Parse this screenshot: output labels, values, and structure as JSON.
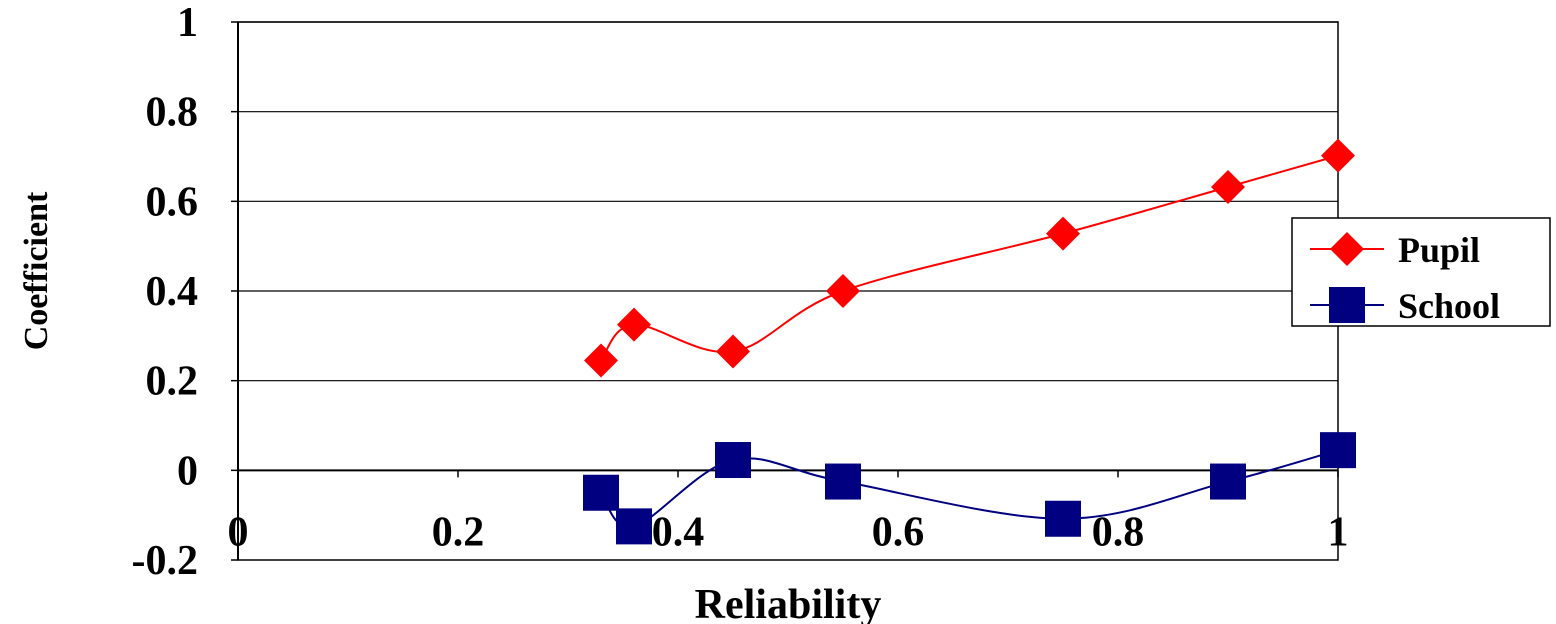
{
  "chart_data": {
    "type": "line",
    "title": "",
    "xlabel": "Reliability",
    "ylabel": "Coefficient",
    "xlim": [
      0,
      1
    ],
    "ylim": [
      -0.2,
      1
    ],
    "x_ticks": [
      0,
      0.2,
      0.4,
      0.6,
      0.8,
      1
    ],
    "x_tick_labels": [
      "0",
      "0.2",
      "0.4",
      "0.6",
      "0.8",
      "1"
    ],
    "y_ticks": [
      -0.2,
      0,
      0.2,
      0.4,
      0.6,
      0.8,
      1
    ],
    "y_tick_labels": [
      "-0.2",
      "0",
      "0.2",
      "0.4",
      "0.6",
      "0.8",
      "1"
    ],
    "grid": "horizontal",
    "legend_position": "right",
    "series": [
      {
        "name": "Pupil",
        "color": "#ff0000",
        "marker": "diamond",
        "x": [
          0.33,
          0.36,
          0.45,
          0.55,
          0.75,
          0.9,
          1.0
        ],
        "y": [
          0.245,
          0.325,
          0.265,
          0.4,
          0.528,
          0.632,
          0.702
        ]
      },
      {
        "name": "School",
        "color": "#000080",
        "marker": "square",
        "x": [
          0.33,
          0.36,
          0.45,
          0.55,
          0.75,
          0.9,
          1.0
        ],
        "y": [
          -0.05,
          -0.125,
          0.023,
          -0.025,
          -0.108,
          -0.025,
          0.045
        ]
      }
    ]
  }
}
